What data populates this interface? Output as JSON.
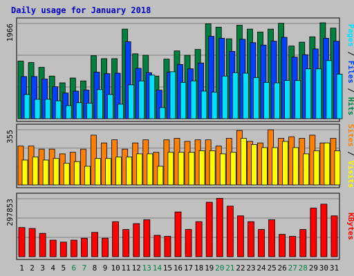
{
  "title": "Daily usage for January 2018",
  "colors": {
    "background": "#c0c0c0",
    "title": "#0000c0",
    "grid": "#808080",
    "hits": "#008040",
    "files": "#0040ff",
    "pages": "#00e0ff",
    "visits": "#ffff00",
    "sites": "#ff8000",
    "kbytes": "#ff0000",
    "weekend_label": "#008040",
    "weekday_label": "#000000"
  },
  "chart_data": [
    {
      "type": "bar",
      "name": "hits-files-pages",
      "categories": [
        "1",
        "2",
        "3",
        "4",
        "5",
        "6",
        "7",
        "8",
        "9",
        "10",
        "11",
        "12",
        "13",
        "14",
        "15",
        "16",
        "17",
        "18",
        "19",
        "20",
        "21",
        "22",
        "23",
        "24",
        "25",
        "26",
        "27",
        "28",
        "29",
        "30",
        "31"
      ],
      "weekend_days": [
        "6",
        "7",
        "13",
        "14",
        "20",
        "21",
        "27",
        "28"
      ],
      "max_label": "1966",
      "ylim": [
        0,
        1966
      ],
      "legend_right": [
        {
          "text": "Pages",
          "color": "#00e0ff"
        },
        {
          "text": " / ",
          "color": "#000000"
        },
        {
          "text": "Files",
          "color": "#0040ff"
        },
        {
          "text": " / ",
          "color": "#000000"
        },
        {
          "text": "Hits",
          "color": "#008040"
        }
      ],
      "series": [
        {
          "name": "Hits",
          "color": "#008040",
          "values": [
            1190,
            1160,
            1060,
            880,
            740,
            840,
            780,
            1300,
            1240,
            1240,
            1850,
            1340,
            1310,
            880,
            1230,
            1400,
            1310,
            1430,
            1960,
            1890,
            1650,
            1930,
            1850,
            1790,
            1850,
            1970,
            1500,
            1580,
            1690,
            1980,
            1870
          ]
        },
        {
          "name": "Files",
          "color": "#0040ff",
          "values": [
            870,
            870,
            820,
            660,
            530,
            570,
            590,
            960,
            930,
            940,
            1590,
            1040,
            950,
            590,
            960,
            1120,
            1030,
            1150,
            1700,
            1660,
            1390,
            1640,
            1570,
            1520,
            1600,
            1680,
            1270,
            1320,
            1440,
            1660,
            1600
          ]
        },
        {
          "name": "Pages",
          "color": "#00e0ff",
          "values": [
            500,
            400,
            400,
            370,
            270,
            330,
            320,
            600,
            500,
            300,
            700,
            780,
            900,
            230,
            970,
            750,
            780,
            570,
            550,
            880,
            950,
            940,
            850,
            750,
            740,
            790,
            790,
            1030,
            1030,
            1200,
            920
          ]
        }
      ]
    },
    {
      "type": "bar",
      "name": "sites-visits",
      "categories": [
        "1",
        "2",
        "3",
        "4",
        "5",
        "6",
        "7",
        "8",
        "9",
        "10",
        "11",
        "12",
        "13",
        "14",
        "15",
        "16",
        "17",
        "18",
        "19",
        "20",
        "21",
        "22",
        "23",
        "24",
        "25",
        "26",
        "27",
        "28",
        "29",
        "30",
        "31"
      ],
      "max_label": "355",
      "ylim": [
        0,
        355
      ],
      "legend_right": [
        {
          "text": "Sites",
          "color": "#ff8000"
        },
        {
          "text": " / ",
          "color": "#000000"
        },
        {
          "text": "Visits",
          "color": "#ffff00"
        }
      ],
      "series": [
        {
          "name": "Sites",
          "color": "#ff8000",
          "values": [
            250,
            250,
            230,
            230,
            200,
            210,
            230,
            320,
            270,
            290,
            230,
            270,
            290,
            210,
            290,
            300,
            280,
            290,
            290,
            250,
            300,
            350,
            280,
            270,
            355,
            300,
            310,
            300,
            320,
            270,
            300
          ]
        },
        {
          "name": "Visits",
          "color": "#ffff00",
          "values": [
            160,
            180,
            160,
            170,
            140,
            150,
            120,
            170,
            170,
            180,
            180,
            200,
            200,
            120,
            210,
            210,
            210,
            220,
            220,
            200,
            210,
            300,
            260,
            240,
            240,
            280,
            240,
            200,
            220,
            270,
            220
          ]
        }
      ]
    },
    {
      "type": "bar",
      "name": "kbytes",
      "categories": [
        "1",
        "2",
        "3",
        "4",
        "5",
        "6",
        "7",
        "8",
        "9",
        "10",
        "11",
        "12",
        "13",
        "14",
        "15",
        "16",
        "17",
        "18",
        "19",
        "20",
        "21",
        "22",
        "23",
        "24",
        "25",
        "26",
        "27",
        "28",
        "29",
        "30",
        "31"
      ],
      "max_label": "297853",
      "ylim": [
        0,
        297853
      ],
      "legend_right": [
        {
          "text": "KBytes",
          "color": "#ff0000"
        }
      ],
      "series": [
        {
          "name": "KBytes",
          "color": "#ff0000",
          "values": [
            150000,
            145000,
            120000,
            85000,
            75000,
            85000,
            95000,
            125000,
            95000,
            180000,
            140000,
            170000,
            190000,
            110000,
            105000,
            230000,
            140000,
            180000,
            280000,
            300000,
            260000,
            210000,
            180000,
            140000,
            190000,
            115000,
            105000,
            140000,
            250000,
            270000,
            210000
          ]
        }
      ]
    }
  ]
}
